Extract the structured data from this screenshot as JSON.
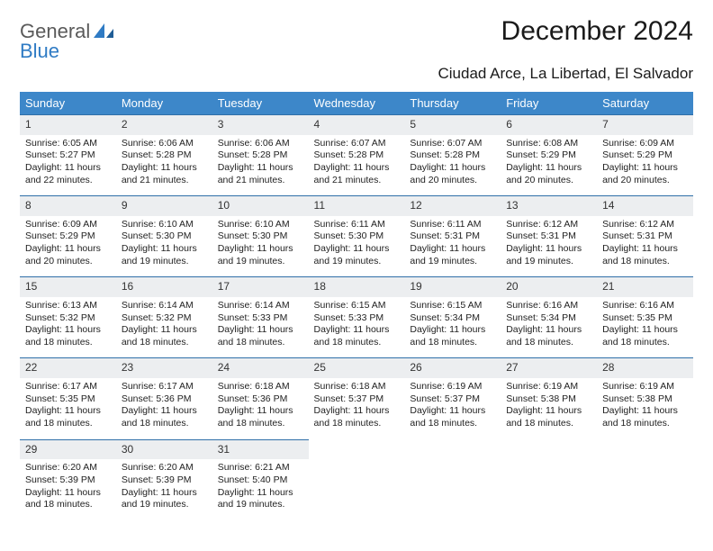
{
  "brand": {
    "line1": "General",
    "line2": "Blue"
  },
  "title": "December 2024",
  "location": "Ciudad Arce, La Libertad, El Salvador",
  "colors": {
    "header_bg": "#3d87c9",
    "header_text": "#ffffff",
    "daynum_bg": "#eceef0",
    "row_border": "#2f6fa8",
    "brand_gray": "#5a5a5a",
    "brand_blue": "#2f7bc4",
    "background": "#ffffff"
  },
  "typography": {
    "title_fontsize": 30,
    "subtitle_fontsize": 17,
    "dayheader_fontsize": 13,
    "cell_fontsize": 10.5
  },
  "dayHeaders": [
    "Sunday",
    "Monday",
    "Tuesday",
    "Wednesday",
    "Thursday",
    "Friday",
    "Saturday"
  ],
  "weeks": [
    [
      {
        "n": "1",
        "sr": "Sunrise: 6:05 AM",
        "ss": "Sunset: 5:27 PM",
        "dl1": "Daylight: 11 hours",
        "dl2": "and 22 minutes."
      },
      {
        "n": "2",
        "sr": "Sunrise: 6:06 AM",
        "ss": "Sunset: 5:28 PM",
        "dl1": "Daylight: 11 hours",
        "dl2": "and 21 minutes."
      },
      {
        "n": "3",
        "sr": "Sunrise: 6:06 AM",
        "ss": "Sunset: 5:28 PM",
        "dl1": "Daylight: 11 hours",
        "dl2": "and 21 minutes."
      },
      {
        "n": "4",
        "sr": "Sunrise: 6:07 AM",
        "ss": "Sunset: 5:28 PM",
        "dl1": "Daylight: 11 hours",
        "dl2": "and 21 minutes."
      },
      {
        "n": "5",
        "sr": "Sunrise: 6:07 AM",
        "ss": "Sunset: 5:28 PM",
        "dl1": "Daylight: 11 hours",
        "dl2": "and 20 minutes."
      },
      {
        "n": "6",
        "sr": "Sunrise: 6:08 AM",
        "ss": "Sunset: 5:29 PM",
        "dl1": "Daylight: 11 hours",
        "dl2": "and 20 minutes."
      },
      {
        "n": "7",
        "sr": "Sunrise: 6:09 AM",
        "ss": "Sunset: 5:29 PM",
        "dl1": "Daylight: 11 hours",
        "dl2": "and 20 minutes."
      }
    ],
    [
      {
        "n": "8",
        "sr": "Sunrise: 6:09 AM",
        "ss": "Sunset: 5:29 PM",
        "dl1": "Daylight: 11 hours",
        "dl2": "and 20 minutes."
      },
      {
        "n": "9",
        "sr": "Sunrise: 6:10 AM",
        "ss": "Sunset: 5:30 PM",
        "dl1": "Daylight: 11 hours",
        "dl2": "and 19 minutes."
      },
      {
        "n": "10",
        "sr": "Sunrise: 6:10 AM",
        "ss": "Sunset: 5:30 PM",
        "dl1": "Daylight: 11 hours",
        "dl2": "and 19 minutes."
      },
      {
        "n": "11",
        "sr": "Sunrise: 6:11 AM",
        "ss": "Sunset: 5:30 PM",
        "dl1": "Daylight: 11 hours",
        "dl2": "and 19 minutes."
      },
      {
        "n": "12",
        "sr": "Sunrise: 6:11 AM",
        "ss": "Sunset: 5:31 PM",
        "dl1": "Daylight: 11 hours",
        "dl2": "and 19 minutes."
      },
      {
        "n": "13",
        "sr": "Sunrise: 6:12 AM",
        "ss": "Sunset: 5:31 PM",
        "dl1": "Daylight: 11 hours",
        "dl2": "and 19 minutes."
      },
      {
        "n": "14",
        "sr": "Sunrise: 6:12 AM",
        "ss": "Sunset: 5:31 PM",
        "dl1": "Daylight: 11 hours",
        "dl2": "and 18 minutes."
      }
    ],
    [
      {
        "n": "15",
        "sr": "Sunrise: 6:13 AM",
        "ss": "Sunset: 5:32 PM",
        "dl1": "Daylight: 11 hours",
        "dl2": "and 18 minutes."
      },
      {
        "n": "16",
        "sr": "Sunrise: 6:14 AM",
        "ss": "Sunset: 5:32 PM",
        "dl1": "Daylight: 11 hours",
        "dl2": "and 18 minutes."
      },
      {
        "n": "17",
        "sr": "Sunrise: 6:14 AM",
        "ss": "Sunset: 5:33 PM",
        "dl1": "Daylight: 11 hours",
        "dl2": "and 18 minutes."
      },
      {
        "n": "18",
        "sr": "Sunrise: 6:15 AM",
        "ss": "Sunset: 5:33 PM",
        "dl1": "Daylight: 11 hours",
        "dl2": "and 18 minutes."
      },
      {
        "n": "19",
        "sr": "Sunrise: 6:15 AM",
        "ss": "Sunset: 5:34 PM",
        "dl1": "Daylight: 11 hours",
        "dl2": "and 18 minutes."
      },
      {
        "n": "20",
        "sr": "Sunrise: 6:16 AM",
        "ss": "Sunset: 5:34 PM",
        "dl1": "Daylight: 11 hours",
        "dl2": "and 18 minutes."
      },
      {
        "n": "21",
        "sr": "Sunrise: 6:16 AM",
        "ss": "Sunset: 5:35 PM",
        "dl1": "Daylight: 11 hours",
        "dl2": "and 18 minutes."
      }
    ],
    [
      {
        "n": "22",
        "sr": "Sunrise: 6:17 AM",
        "ss": "Sunset: 5:35 PM",
        "dl1": "Daylight: 11 hours",
        "dl2": "and 18 minutes."
      },
      {
        "n": "23",
        "sr": "Sunrise: 6:17 AM",
        "ss": "Sunset: 5:36 PM",
        "dl1": "Daylight: 11 hours",
        "dl2": "and 18 minutes."
      },
      {
        "n": "24",
        "sr": "Sunrise: 6:18 AM",
        "ss": "Sunset: 5:36 PM",
        "dl1": "Daylight: 11 hours",
        "dl2": "and 18 minutes."
      },
      {
        "n": "25",
        "sr": "Sunrise: 6:18 AM",
        "ss": "Sunset: 5:37 PM",
        "dl1": "Daylight: 11 hours",
        "dl2": "and 18 minutes."
      },
      {
        "n": "26",
        "sr": "Sunrise: 6:19 AM",
        "ss": "Sunset: 5:37 PM",
        "dl1": "Daylight: 11 hours",
        "dl2": "and 18 minutes."
      },
      {
        "n": "27",
        "sr": "Sunrise: 6:19 AM",
        "ss": "Sunset: 5:38 PM",
        "dl1": "Daylight: 11 hours",
        "dl2": "and 18 minutes."
      },
      {
        "n": "28",
        "sr": "Sunrise: 6:19 AM",
        "ss": "Sunset: 5:38 PM",
        "dl1": "Daylight: 11 hours",
        "dl2": "and 18 minutes."
      }
    ],
    [
      {
        "n": "29",
        "sr": "Sunrise: 6:20 AM",
        "ss": "Sunset: 5:39 PM",
        "dl1": "Daylight: 11 hours",
        "dl2": "and 18 minutes."
      },
      {
        "n": "30",
        "sr": "Sunrise: 6:20 AM",
        "ss": "Sunset: 5:39 PM",
        "dl1": "Daylight: 11 hours",
        "dl2": "and 19 minutes."
      },
      {
        "n": "31",
        "sr": "Sunrise: 6:21 AM",
        "ss": "Sunset: 5:40 PM",
        "dl1": "Daylight: 11 hours",
        "dl2": "and 19 minutes."
      },
      null,
      null,
      null,
      null
    ]
  ]
}
